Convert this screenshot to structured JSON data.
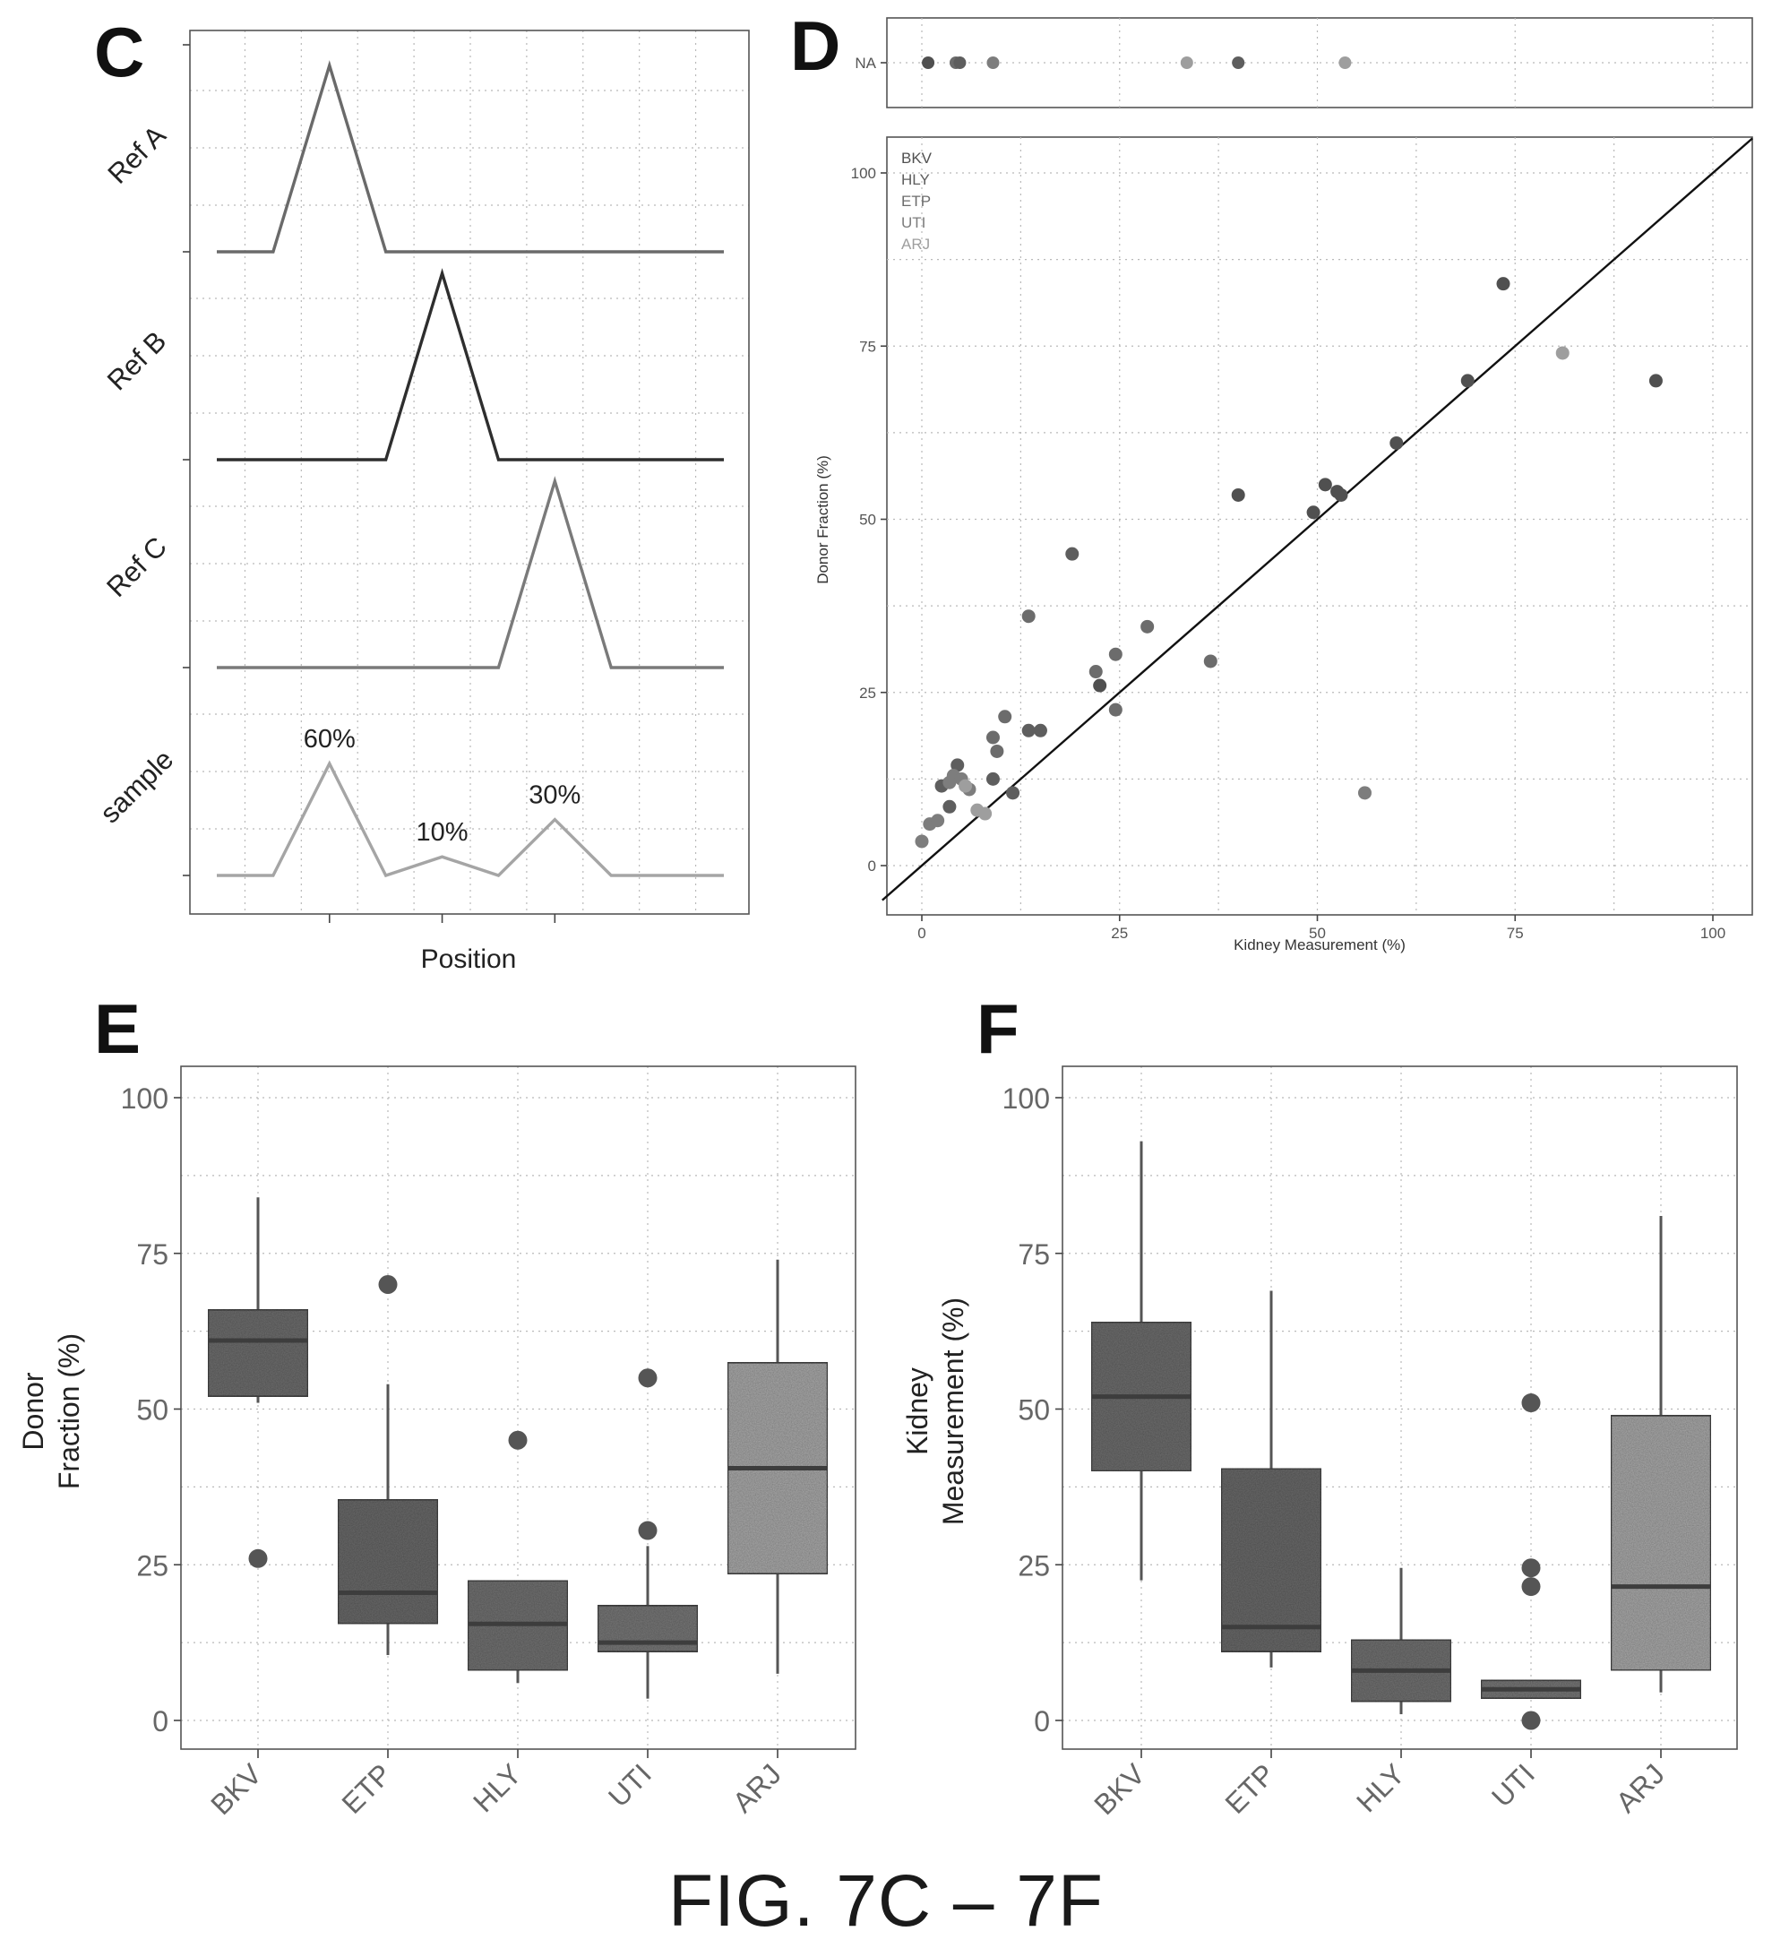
{
  "figure_title": "FIG. 7C – 7F",
  "chart_data": [
    {
      "panel": "C",
      "type": "line",
      "xlabel": "Position",
      "ylabel": "",
      "x_ticks": [
        1,
        2,
        3
      ],
      "x_tick_labels": [
        "",
        "",
        ""
      ],
      "facets": [
        {
          "label": "Ref A",
          "color": "#6a6a6a",
          "x": [
            0,
            0.5,
            1,
            1.5,
            4.5
          ],
          "y": [
            0,
            0,
            1,
            0,
            0
          ]
        },
        {
          "label": "Ref B",
          "color": "#2e2e2e",
          "x": [
            0,
            1.5,
            2,
            2.5,
            4.5
          ],
          "y": [
            0,
            0,
            1,
            0,
            0
          ]
        },
        {
          "label": "Ref C",
          "color": "#7a7a7a",
          "x": [
            0,
            2.5,
            3,
            3.5,
            4.5
          ],
          "y": [
            0,
            0,
            1,
            0,
            0
          ]
        },
        {
          "label": "sample",
          "color": "#a5a5a5",
          "x": [
            0,
            0.5,
            1,
            1.5,
            2,
            2.5,
            3,
            3.5,
            4.5
          ],
          "y": [
            0,
            0,
            0.6,
            0,
            0.1,
            0,
            0.3,
            0,
            0
          ]
        }
      ],
      "annotations": [
        {
          "text": "60%",
          "x": 1,
          "y": 0.6
        },
        {
          "text": "10%",
          "x": 2,
          "y": 0.1
        },
        {
          "text": "30%",
          "x": 3,
          "y": 0.3
        }
      ]
    },
    {
      "panel": "D",
      "type": "scatter",
      "xlabel": "Kidney Measurement (%)",
      "ylabel": "Donor Fraction (%)",
      "xlim": [
        -5,
        105
      ],
      "ylim": [
        -5,
        105
      ],
      "x_ticks": [
        0,
        25,
        50,
        75,
        100
      ],
      "y_ticks": [
        0,
        25,
        50,
        75,
        100
      ],
      "na_row_label": "NA",
      "reference_line": {
        "slope": 1,
        "intercept": 0
      },
      "legend": [
        "BKV",
        "HLY",
        "ETP",
        "UTI",
        "ARJ"
      ],
      "legend_position": "top-left",
      "grid": true,
      "colors": {
        "BKV": "#505050",
        "HLY": "#5e5e5e",
        "ETP": "#6c6c6c",
        "UTI": "#7d7d7d",
        "ARJ": "#9e9e9e"
      },
      "points": [
        {
          "group": "BKV",
          "x": 73.5,
          "y": 84
        },
        {
          "group": "BKV",
          "x": 69,
          "y": 70
        },
        {
          "group": "BKV",
          "x": 92.8,
          "y": 70
        },
        {
          "group": "BKV",
          "x": 60,
          "y": 61
        },
        {
          "group": "BKV",
          "x": 53,
          "y": 53.5
        },
        {
          "group": "BKV",
          "x": 51,
          "y": 55
        },
        {
          "group": "BKV",
          "x": 49.5,
          "y": 51
        },
        {
          "group": "BKV",
          "x": 40,
          "y": 53.5
        },
        {
          "group": "BKV",
          "x": 52.5,
          "y": 54
        },
        {
          "group": "BKV",
          "x": 22.5,
          "y": 26
        },
        {
          "group": "ETP",
          "x": 36.5,
          "y": 29.5
        },
        {
          "group": "ETP",
          "x": 28.5,
          "y": 34.5
        },
        {
          "group": "ETP",
          "x": 24.5,
          "y": 30.5
        },
        {
          "group": "ETP",
          "x": 22,
          "y": 28
        },
        {
          "group": "ETP",
          "x": 24.5,
          "y": 22.5
        },
        {
          "group": "ETP",
          "x": 13.5,
          "y": 36
        },
        {
          "group": "ETP",
          "x": 10.5,
          "y": 21.5
        },
        {
          "group": "ETP",
          "x": 9.5,
          "y": 16.5
        },
        {
          "group": "ETP",
          "x": 9,
          "y": 18.5
        },
        {
          "group": "HLY",
          "x": 19,
          "y": 45
        },
        {
          "group": "HLY",
          "x": 13.5,
          "y": 19.5
        },
        {
          "group": "HLY",
          "x": 15,
          "y": 19.5
        },
        {
          "group": "HLY",
          "x": 9,
          "y": 12.5
        },
        {
          "group": "HLY",
          "x": 11.5,
          "y": 10.5
        },
        {
          "group": "HLY",
          "x": 4.5,
          "y": 14.5
        },
        {
          "group": "HLY",
          "x": 2.5,
          "y": 11.5
        },
        {
          "group": "HLY",
          "x": 3.5,
          "y": 8.5
        },
        {
          "group": "UTI",
          "x": 56,
          "y": 10.5
        },
        {
          "group": "UTI",
          "x": 4,
          "y": 13
        },
        {
          "group": "UTI",
          "x": 5,
          "y": 12.5
        },
        {
          "group": "UTI",
          "x": 6,
          "y": 11
        },
        {
          "group": "UTI",
          "x": 3.5,
          "y": 12
        },
        {
          "group": "UTI",
          "x": 1,
          "y": 6
        },
        {
          "group": "UTI",
          "x": 2,
          "y": 6.5
        },
        {
          "group": "UTI",
          "x": 0,
          "y": 3.5
        },
        {
          "group": "ARJ",
          "x": 81,
          "y": 74
        },
        {
          "group": "ARJ",
          "x": 5.5,
          "y": 11.5
        },
        {
          "group": "ARJ",
          "x": 7,
          "y": 8
        },
        {
          "group": "ARJ",
          "x": 8,
          "y": 7.5
        }
      ],
      "na_points": [
        {
          "group": "BKV",
          "x": 0.8
        },
        {
          "group": "ETP",
          "x": 4.3
        },
        {
          "group": "HLY",
          "x": 4.8
        },
        {
          "group": "UTI",
          "x": 9.0
        },
        {
          "group": "ARJ",
          "x": 33.5
        },
        {
          "group": "HLY",
          "x": 40.0
        },
        {
          "group": "ARJ",
          "x": 53.5
        }
      ]
    },
    {
      "panel": "E",
      "type": "box",
      "ylabel": "Donor Fraction (%)",
      "ylabel_lines": [
        "Donor",
        "Fraction (%)"
      ],
      "categories": [
        "BKV",
        "ETP",
        "HLY",
        "UTI",
        "ARJ"
      ],
      "ylim": [
        -5,
        105
      ],
      "y_ticks": [
        0,
        25,
        50,
        75,
        100
      ],
      "boxes": [
        {
          "category": "BKV",
          "whisker_low": 51,
          "q1": 52,
          "median": 61,
          "q3": 66,
          "whisker_high": 84,
          "outliers": [
            26
          ],
          "fill": "#6e6e6e"
        },
        {
          "category": "ETP",
          "whisker_low": 10.5,
          "q1": 15.5,
          "median": 20.5,
          "q3": 35.5,
          "whisker_high": 54,
          "outliers": [
            70
          ],
          "fill": "#6a6a6a"
        },
        {
          "category": "HLY",
          "whisker_low": 6,
          "q1": 8,
          "median": 15.5,
          "q3": 22.5,
          "whisker_high": 22.5,
          "outliers": [
            45
          ],
          "fill": "#727272"
        },
        {
          "category": "UTI",
          "whisker_low": 3.5,
          "q1": 11,
          "median": 12.5,
          "q3": 18.5,
          "whisker_high": 28,
          "outliers": [
            30.5,
            55
          ],
          "fill": "#787878"
        },
        {
          "category": "ARJ",
          "whisker_low": 7.5,
          "q1": 23.5,
          "median": 40.5,
          "q3": 57.5,
          "whisker_high": 74,
          "outliers": [],
          "fill": "#a9a9a9"
        }
      ]
    },
    {
      "panel": "F",
      "type": "box",
      "ylabel": "Kidney Measurement (%)",
      "ylabel_lines": [
        "Kidney",
        "Measurement (%)"
      ],
      "categories": [
        "BKV",
        "ETP",
        "HLY",
        "UTI",
        "ARJ"
      ],
      "ylim": [
        -5,
        105
      ],
      "y_ticks": [
        0,
        25,
        50,
        75,
        100
      ],
      "boxes": [
        {
          "category": "BKV",
          "whisker_low": 22.5,
          "q1": 40,
          "median": 52,
          "q3": 64,
          "whisker_high": 93,
          "outliers": [],
          "fill": "#6e6e6e"
        },
        {
          "category": "ETP",
          "whisker_low": 8.5,
          "q1": 11,
          "median": 15,
          "q3": 40.5,
          "whisker_high": 69,
          "outliers": [],
          "fill": "#6a6a6a"
        },
        {
          "category": "HLY",
          "whisker_low": 1,
          "q1": 3,
          "median": 8,
          "q3": 13,
          "whisker_high": 24.5,
          "outliers": [],
          "fill": "#727272"
        },
        {
          "category": "UTI",
          "whisker_low": 3.5,
          "q1": 3.5,
          "median": 5,
          "q3": 6.5,
          "whisker_high": 6.5,
          "outliers": [
            0,
            21.5,
            24.5,
            51
          ],
          "fill": "#787878"
        },
        {
          "category": "ARJ",
          "whisker_low": 4.5,
          "q1": 8,
          "median": 21.5,
          "q3": 49,
          "whisker_high": 81,
          "outliers": [],
          "fill": "#a9a9a9"
        }
      ]
    }
  ]
}
